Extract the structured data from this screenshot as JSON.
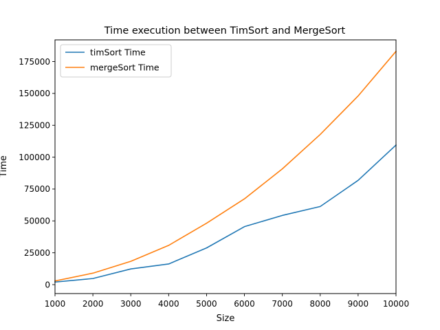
{
  "chart_data": {
    "type": "line",
    "title": "Time execution between TimSort and MergeSort",
    "xlabel": "Size",
    "ylabel": "Time",
    "xlim": [
      1000,
      10000
    ],
    "ylim": [
      -7000,
      192000
    ],
    "x_ticks": [
      1000,
      2000,
      3000,
      4000,
      5000,
      6000,
      7000,
      8000,
      9000,
      10000
    ],
    "y_ticks": [
      0,
      25000,
      50000,
      75000,
      100000,
      125000,
      150000,
      175000
    ],
    "grid": false,
    "legend_position": "top-left",
    "x": [
      1000,
      2000,
      3000,
      4000,
      5000,
      6000,
      7000,
      8000,
      9000,
      10000
    ],
    "series": [
      {
        "name": "timSort Time",
        "color": "#1f77b4",
        "values": [
          2000,
          4800,
          12300,
          16200,
          28800,
          45500,
          54300,
          61300,
          81800,
          109500
        ]
      },
      {
        "name": "mergeSort Time",
        "color": "#ff7f0e",
        "values": [
          2900,
          9000,
          18300,
          30800,
          48200,
          67300,
          90800,
          117800,
          148000,
          183000
        ]
      }
    ]
  }
}
